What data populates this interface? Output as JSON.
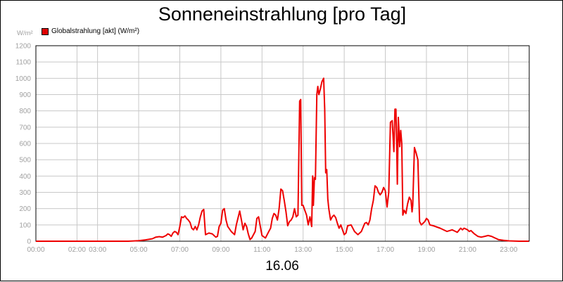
{
  "chart_data": {
    "type": "line",
    "title": "Sonneneinstrahlung [pro Tag]",
    "ylabel": "W/m²",
    "xlabel": "16.06",
    "ylim": [
      0,
      1200
    ],
    "yticks": [
      0,
      100,
      200,
      300,
      400,
      500,
      600,
      700,
      800,
      900,
      1000,
      1100,
      1200
    ],
    "xlim": [
      0,
      24
    ],
    "xticks": [
      {
        "hour": 0,
        "label": "00:00"
      },
      {
        "hour": 2,
        "label": "02:00"
      },
      {
        "hour": 3,
        "label": "03:00"
      },
      {
        "hour": 5,
        "label": "05:00"
      },
      {
        "hour": 7,
        "label": "07:00"
      },
      {
        "hour": 9,
        "label": "09:00"
      },
      {
        "hour": 11,
        "label": "11:00"
      },
      {
        "hour": 13,
        "label": "13:00"
      },
      {
        "hour": 15,
        "label": "15:00"
      },
      {
        "hour": 17,
        "label": "17:00"
      },
      {
        "hour": 19,
        "label": "19:00"
      },
      {
        "hour": 21,
        "label": "21:00"
      },
      {
        "hour": 23,
        "label": "23:00"
      }
    ],
    "grid": true,
    "legend_position": "top-left",
    "series": [
      {
        "name": "Globalstrahlung [akt] (W/m²)",
        "color": "#ee0000",
        "points": [
          [
            "00:00",
            0
          ],
          [
            "04:30",
            0
          ],
          [
            "05:00",
            3
          ],
          [
            "05:20",
            8
          ],
          [
            "05:40",
            15
          ],
          [
            "05:50",
            25
          ],
          [
            "06:00",
            28
          ],
          [
            "06:10",
            25
          ],
          [
            "06:20",
            35
          ],
          [
            "06:25",
            45
          ],
          [
            "06:30",
            40
          ],
          [
            "06:35",
            30
          ],
          [
            "06:40",
            50
          ],
          [
            "06:45",
            60
          ],
          [
            "06:50",
            55
          ],
          [
            "06:55",
            40
          ],
          [
            "07:00",
            90
          ],
          [
            "07:05",
            150
          ],
          [
            "07:10",
            145
          ],
          [
            "07:15",
            155
          ],
          [
            "07:20",
            140
          ],
          [
            "07:25",
            130
          ],
          [
            "07:30",
            115
          ],
          [
            "07:35",
            80
          ],
          [
            "07:40",
            70
          ],
          [
            "07:45",
            90
          ],
          [
            "07:50",
            70
          ],
          [
            "07:55",
            100
          ],
          [
            "08:00",
            150
          ],
          [
            "08:05",
            185
          ],
          [
            "08:10",
            195
          ],
          [
            "08:15",
            40
          ],
          [
            "08:25",
            50
          ],
          [
            "08:35",
            45
          ],
          [
            "08:45",
            25
          ],
          [
            "08:50",
            30
          ],
          [
            "08:55",
            90
          ],
          [
            "09:00",
            110
          ],
          [
            "09:05",
            190
          ],
          [
            "09:10",
            200
          ],
          [
            "09:15",
            130
          ],
          [
            "09:20",
            90
          ],
          [
            "09:30",
            60
          ],
          [
            "09:40",
            40
          ],
          [
            "09:45",
            100
          ],
          [
            "09:55",
            185
          ],
          [
            "10:00",
            130
          ],
          [
            "10:05",
            70
          ],
          [
            "10:10",
            110
          ],
          [
            "10:15",
            90
          ],
          [
            "10:20",
            45
          ],
          [
            "10:25",
            10
          ],
          [
            "10:30",
            20
          ],
          [
            "10:40",
            60
          ],
          [
            "10:45",
            140
          ],
          [
            "10:50",
            150
          ],
          [
            "10:55",
            90
          ],
          [
            "11:00",
            35
          ],
          [
            "11:10",
            20
          ],
          [
            "11:20",
            60
          ],
          [
            "11:25",
            80
          ],
          [
            "11:30",
            140
          ],
          [
            "11:35",
            170
          ],
          [
            "11:40",
            160
          ],
          [
            "11:45",
            130
          ],
          [
            "11:50",
            200
          ],
          [
            "11:55",
            320
          ],
          [
            "12:00",
            310
          ],
          [
            "12:05",
            250
          ],
          [
            "12:10",
            180
          ],
          [
            "12:15",
            95
          ],
          [
            "12:20",
            120
          ],
          [
            "12:25",
            130
          ],
          [
            "12:30",
            150
          ],
          [
            "12:35",
            200
          ],
          [
            "12:40",
            150
          ],
          [
            "12:45",
            160
          ],
          [
            "12:50",
            860
          ],
          [
            "12:53",
            870
          ],
          [
            "12:56",
            220
          ],
          [
            "13:00",
            220
          ],
          [
            "13:05",
            190
          ],
          [
            "13:10",
            160
          ],
          [
            "13:15",
            100
          ],
          [
            "13:20",
            150
          ],
          [
            "13:25",
            90
          ],
          [
            "13:28",
            400
          ],
          [
            "13:30",
            220
          ],
          [
            "13:33",
            390
          ],
          [
            "13:36",
            380
          ],
          [
            "13:40",
            900
          ],
          [
            "13:43",
            950
          ],
          [
            "13:46",
            900
          ],
          [
            "13:50",
            930
          ],
          [
            "13:55",
            980
          ],
          [
            "14:00",
            1000
          ],
          [
            "14:03",
            810
          ],
          [
            "14:06",
            420
          ],
          [
            "14:09",
            440
          ],
          [
            "14:12",
            260
          ],
          [
            "14:15",
            200
          ],
          [
            "14:20",
            130
          ],
          [
            "14:25",
            150
          ],
          [
            "14:30",
            160
          ],
          [
            "14:35",
            145
          ],
          [
            "14:40",
            110
          ],
          [
            "14:45",
            80
          ],
          [
            "14:50",
            100
          ],
          [
            "14:55",
            70
          ],
          [
            "15:00",
            40
          ],
          [
            "15:05",
            50
          ],
          [
            "15:10",
            95
          ],
          [
            "15:20",
            100
          ],
          [
            "15:30",
            60
          ],
          [
            "15:40",
            40
          ],
          [
            "15:50",
            60
          ],
          [
            "16:00",
            110
          ],
          [
            "16:05",
            115
          ],
          [
            "16:10",
            100
          ],
          [
            "16:15",
            130
          ],
          [
            "16:20",
            200
          ],
          [
            "16:25",
            250
          ],
          [
            "16:30",
            340
          ],
          [
            "16:35",
            330
          ],
          [
            "16:40",
            300
          ],
          [
            "16:45",
            285
          ],
          [
            "16:50",
            300
          ],
          [
            "16:55",
            330
          ],
          [
            "17:00",
            310
          ],
          [
            "17:05",
            210
          ],
          [
            "17:10",
            300
          ],
          [
            "17:15",
            730
          ],
          [
            "17:20",
            740
          ],
          [
            "17:25",
            550
          ],
          [
            "17:28",
            810
          ],
          [
            "17:31",
            810
          ],
          [
            "17:33",
            600
          ],
          [
            "17:35",
            350
          ],
          [
            "17:38",
            760
          ],
          [
            "17:42",
            580
          ],
          [
            "17:45",
            680
          ],
          [
            "17:48",
            600
          ],
          [
            "17:51",
            160
          ],
          [
            "17:55",
            190
          ],
          [
            "18:00",
            170
          ],
          [
            "18:05",
            230
          ],
          [
            "18:10",
            270
          ],
          [
            "18:15",
            250
          ],
          [
            "18:18",
            180
          ],
          [
            "18:20",
            220
          ],
          [
            "18:25",
            575
          ],
          [
            "18:30",
            540
          ],
          [
            "18:35",
            500
          ],
          [
            "18:40",
            120
          ],
          [
            "18:45",
            100
          ],
          [
            "18:50",
            110
          ],
          [
            "18:55",
            120
          ],
          [
            "19:00",
            140
          ],
          [
            "19:05",
            130
          ],
          [
            "19:10",
            100
          ],
          [
            "19:20",
            95
          ],
          [
            "19:40",
            80
          ],
          [
            "20:00",
            60
          ],
          [
            "20:15",
            70
          ],
          [
            "20:25",
            60
          ],
          [
            "20:30",
            55
          ],
          [
            "20:40",
            80
          ],
          [
            "20:45",
            70
          ],
          [
            "20:50",
            80
          ],
          [
            "21:00",
            70
          ],
          [
            "21:05",
            60
          ],
          [
            "21:10",
            65
          ],
          [
            "21:20",
            45
          ],
          [
            "21:30",
            30
          ],
          [
            "21:40",
            25
          ],
          [
            "21:50",
            30
          ],
          [
            "22:00",
            35
          ],
          [
            "22:10",
            30
          ],
          [
            "22:20",
            20
          ],
          [
            "22:30",
            10
          ],
          [
            "22:45",
            5
          ],
          [
            "23:00",
            2
          ],
          [
            "23:30",
            0
          ],
          [
            "23:59",
            0
          ]
        ]
      }
    ]
  }
}
